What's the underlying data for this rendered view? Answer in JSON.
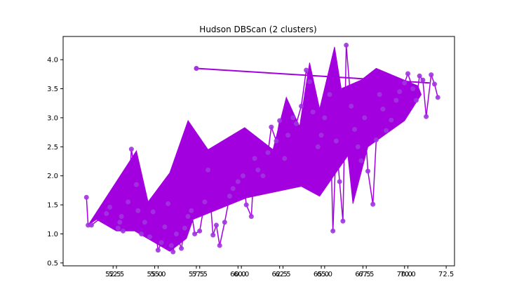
{
  "chart_data": {
    "type": "scatter",
    "title": "Hudson DBScan (2 clusters)",
    "xlabel": "",
    "ylabel": "",
    "xlim": [
      49.5,
      73.0
    ],
    "ylim": [
      0.45,
      4.4
    ],
    "grid": false,
    "colors": {
      "cluster": "#a300e0",
      "points": "#a133e0"
    },
    "xticks_axis_a": [
      52.5,
      55.0,
      57.5,
      60.0,
      62.5,
      65.0,
      67.5,
      70.0,
      72.5
    ],
    "xticks_axis_b": [
      52.5,
      55.0,
      57.5,
      60.0,
      62.5,
      65.0,
      67.5,
      70.0
    ],
    "x_tick_labels_a": [
      "52.5",
      "55.0",
      "57.5",
      "60.0",
      "62.5",
      "65.0",
      "67.5",
      "70.0",
      "72.5"
    ],
    "x_tick_labels_b": [
      "52.5",
      "55.0",
      "57.5",
      "60.0",
      "62.5",
      "65.0",
      "67.5",
      "70.0"
    ],
    "yticks": [
      0.5,
      1.0,
      1.5,
      2.0,
      2.5,
      3.0,
      3.5,
      4.0
    ],
    "y_tick_labels": [
      "0.5",
      "1.0",
      "1.5",
      "2.0",
      "2.5",
      "3.0",
      "3.5",
      "4.0"
    ],
    "series": [
      {
        "points": [
          [
            50.9,
            1.63
          ],
          [
            51.0,
            1.15
          ],
          [
            51.2,
            1.15
          ],
          [
            52.1,
            1.35
          ],
          [
            52.3,
            1.46
          ],
          [
            52.8,
            1.1
          ],
          [
            52.9,
            1.2
          ],
          [
            53.0,
            1.3
          ],
          [
            53.1,
            1.05
          ],
          [
            53.4,
            1.55
          ],
          [
            53.6,
            2.46
          ],
          [
            53.9,
            1.85
          ],
          [
            54.0,
            1.4
          ],
          [
            54.2,
            1.0
          ],
          [
            54.4,
            1.2
          ],
          [
            54.7,
            0.95
          ],
          [
            54.9,
            1.38
          ],
          [
            55.2,
            0.72
          ],
          [
            55.4,
            0.85
          ],
          [
            55.6,
            1.12
          ],
          [
            55.8,
            1.52
          ],
          [
            56.0,
            0.8
          ],
          [
            56.1,
            0.69
          ],
          [
            56.3,
            1.0
          ],
          [
            56.6,
            0.75
          ],
          [
            56.8,
            1.1
          ],
          [
            57.0,
            1.3
          ],
          [
            57.2,
            1.4
          ],
          [
            57.4,
            1.0
          ],
          [
            57.7,
            1.05
          ],
          [
            58.0,
            1.55
          ],
          [
            58.2,
            2.1
          ],
          [
            58.5,
            0.98
          ],
          [
            58.7,
            1.15
          ],
          [
            58.9,
            0.8
          ],
          [
            59.2,
            1.2
          ],
          [
            59.5,
            1.65
          ],
          [
            59.7,
            1.78
          ],
          [
            60.0,
            1.9
          ],
          [
            60.3,
            2.0
          ],
          [
            60.5,
            1.5
          ],
          [
            60.8,
            1.3
          ],
          [
            61.0,
            2.3
          ],
          [
            61.2,
            2.1
          ],
          [
            61.5,
            2.0
          ],
          [
            61.8,
            2.4
          ],
          [
            62.0,
            2.84
          ],
          [
            62.3,
            2.6
          ],
          [
            62.5,
            2.95
          ],
          [
            62.8,
            2.3
          ],
          [
            63.0,
            2.7
          ],
          [
            63.3,
            3.0
          ],
          [
            63.5,
            2.9
          ],
          [
            63.8,
            3.2
          ],
          [
            64.1,
            3.82
          ],
          [
            64.3,
            3.62
          ],
          [
            64.5,
            3.1
          ],
          [
            64.8,
            2.5
          ],
          [
            65.0,
            2.7
          ],
          [
            65.2,
            3.0
          ],
          [
            65.5,
            3.4
          ],
          [
            65.7,
            1.05
          ],
          [
            65.9,
            2.6
          ],
          [
            66.1,
            1.9
          ],
          [
            66.3,
            1.22
          ],
          [
            66.5,
            4.25
          ],
          [
            66.8,
            3.2
          ],
          [
            67.0,
            2.8
          ],
          [
            67.2,
            2.5
          ],
          [
            67.4,
            2.26
          ],
          [
            67.6,
            3.0
          ],
          [
            67.8,
            2.08
          ],
          [
            68.1,
            1.51
          ],
          [
            68.3,
            2.62
          ],
          [
            68.5,
            3.4
          ],
          [
            68.7,
            3.15
          ],
          [
            68.9,
            2.78
          ],
          [
            69.2,
            2.96
          ],
          [
            69.5,
            3.3
          ],
          [
            69.7,
            3.45
          ],
          [
            70.0,
            3.6
          ],
          [
            70.2,
            3.76
          ],
          [
            70.5,
            3.5
          ],
          [
            70.7,
            3.3
          ],
          [
            70.9,
            3.72
          ],
          [
            71.1,
            3.65
          ],
          [
            71.3,
            3.02
          ],
          [
            71.6,
            3.74
          ],
          [
            71.8,
            3.58
          ],
          [
            72.0,
            3.35
          ]
        ],
        "outline_points": [
          [
            51.0,
            1.15
          ],
          [
            53.9,
            2.43
          ],
          [
            54.6,
            1.55
          ],
          [
            55.9,
            2.05
          ],
          [
            57.0,
            2.95
          ],
          [
            58.2,
            2.45
          ],
          [
            60.4,
            2.83
          ],
          [
            62.1,
            2.45
          ],
          [
            62.9,
            3.35
          ],
          [
            63.7,
            2.85
          ],
          [
            64.3,
            3.95
          ],
          [
            64.9,
            3.15
          ],
          [
            65.8,
            4.22
          ],
          [
            66.2,
            3.5
          ],
          [
            67.4,
            3.65
          ],
          [
            68.3,
            3.85
          ],
          [
            70.8,
            3.55
          ],
          [
            71.0,
            3.4
          ],
          [
            70.0,
            2.95
          ],
          [
            67.8,
            2.5
          ],
          [
            66.9,
            1.52
          ],
          [
            66.6,
            2.35
          ],
          [
            64.9,
            1.65
          ],
          [
            63.8,
            1.82
          ],
          [
            60.5,
            1.62
          ],
          [
            57.3,
            1.25
          ],
          [
            56.9,
            0.92
          ],
          [
            55.9,
            0.7
          ],
          [
            53.8,
            1.05
          ],
          [
            52.7,
            1.05
          ],
          [
            51.5,
            1.25
          ]
        ]
      }
    ]
  }
}
